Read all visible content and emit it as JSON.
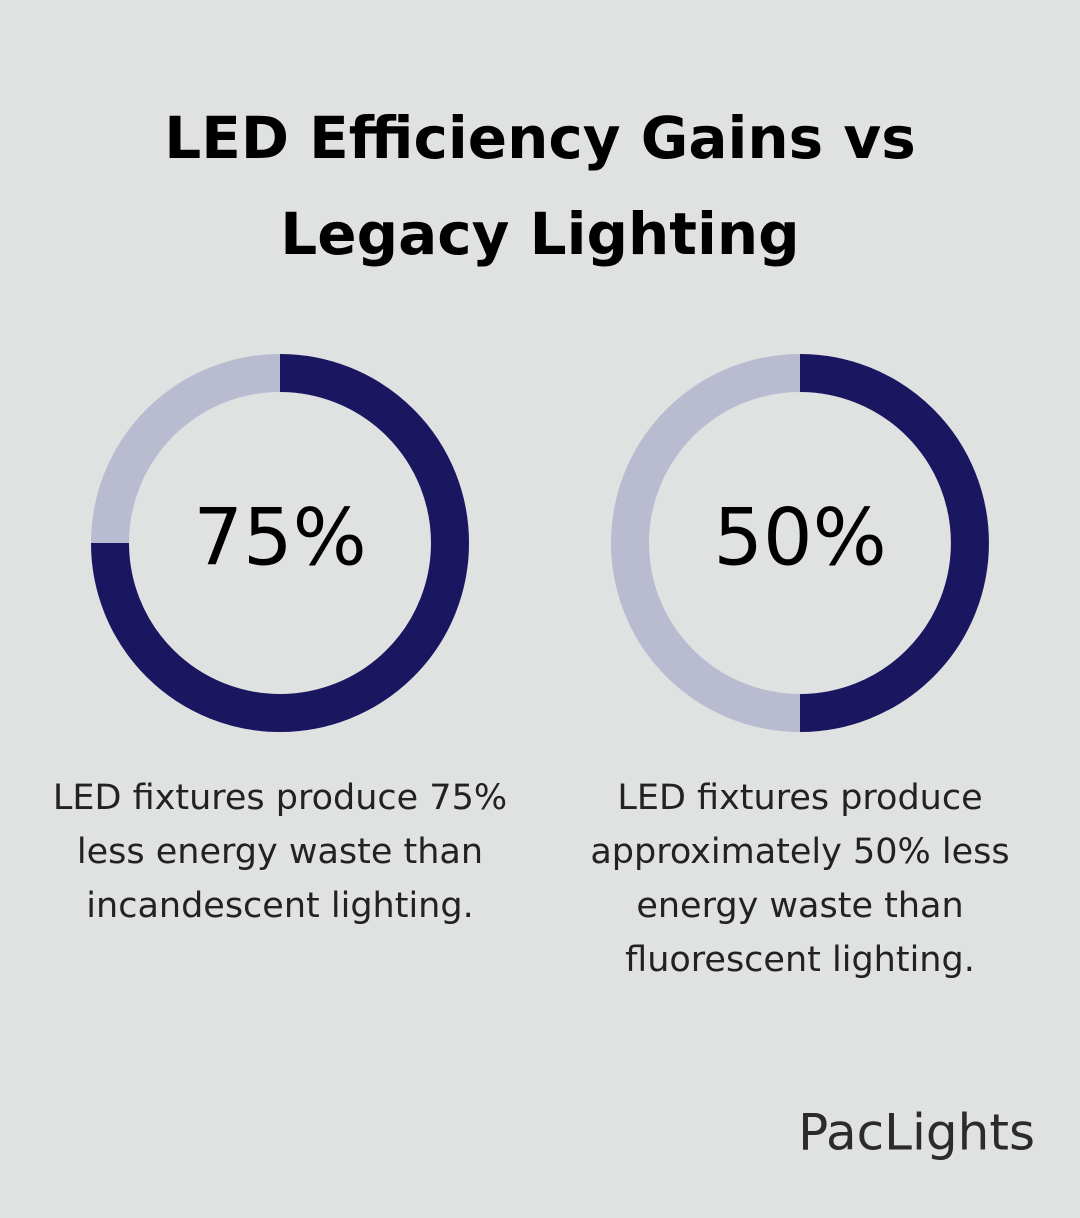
{
  "title": [
    "LED Efficiency Gains vs",
    "Legacy Lighting"
  ],
  "chart_data": [
    {
      "type": "donut",
      "values": [
        75
      ],
      "value_labels": [
        "75%"
      ],
      "max": 100,
      "color": "#1a1760",
      "track_color": "#b9bbd0",
      "caption": [
        "LED fixtures produce 75%",
        "less energy waste than",
        "incandescent lighting."
      ]
    },
    {
      "type": "donut",
      "values": [
        50
      ],
      "value_labels": [
        "50%"
      ],
      "max": 100,
      "color": "#1a1760",
      "track_color": "#b9bbd0",
      "caption": [
        "LED fixtures produce",
        "approximately 50% less",
        "energy waste than",
        "fluorescent lighting."
      ]
    }
  ],
  "brand": "PacLights"
}
